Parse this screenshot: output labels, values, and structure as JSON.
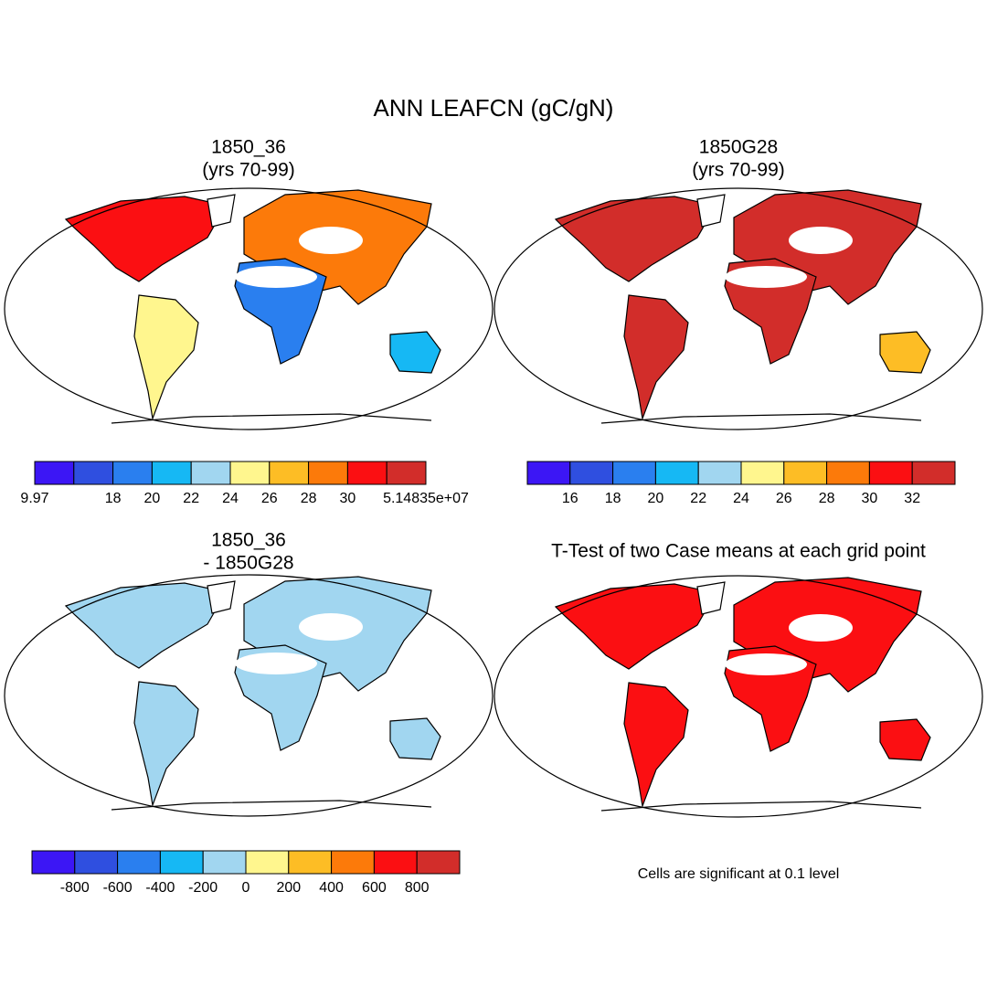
{
  "title": "ANN LEAFCN (gC/gN)",
  "panels": [
    {
      "title": [
        "1850_36",
        "(yrs 70-99)"
      ]
    },
    {
      "title": [
        "1850G28",
        "(yrs 70-99)"
      ]
    },
    {
      "title": [
        "1850_36",
        "- 1850G28"
      ]
    },
    {
      "title": [
        "T-Test of two Case means at each grid point"
      ]
    }
  ],
  "colorbars": [
    {
      "colors": [
        "#3c16f5",
        "#2f4fe0",
        "#2a7fef",
        "#16b8f4",
        "#a1d6f0",
        "#fff68e",
        "#fdbd25",
        "#fc7a0a",
        "#fb0f12",
        "#d22d2a"
      ],
      "labels": [
        "9.97",
        null,
        "18",
        "20",
        "22",
        "24",
        "26",
        "28",
        "30",
        null,
        "5.14835e+07"
      ]
    },
    {
      "colors": [
        "#3c16f5",
        "#2f4fe0",
        "#2a7fef",
        "#16b8f4",
        "#a1d6f0",
        "#fff68e",
        "#fdbd25",
        "#fc7a0a",
        "#fb0f12",
        "#d22d2a"
      ],
      "labels": [
        null,
        "16",
        "18",
        "20",
        "22",
        "24",
        "26",
        "28",
        "30",
        "32",
        null
      ]
    },
    {
      "colors": [
        "#3c16f5",
        "#2f4fe0",
        "#2a7fef",
        "#16b8f4",
        "#a1d6f0",
        "#fff68e",
        "#fdbd25",
        "#fc7a0a",
        "#fb0f12",
        "#d22d2a"
      ],
      "labels": [
        null,
        "-800",
        "-600",
        "-400",
        "-200",
        "0",
        "200",
        "400",
        "600",
        "800",
        null
      ]
    }
  ],
  "note": "Cells are significant at 0.1 level"
}
